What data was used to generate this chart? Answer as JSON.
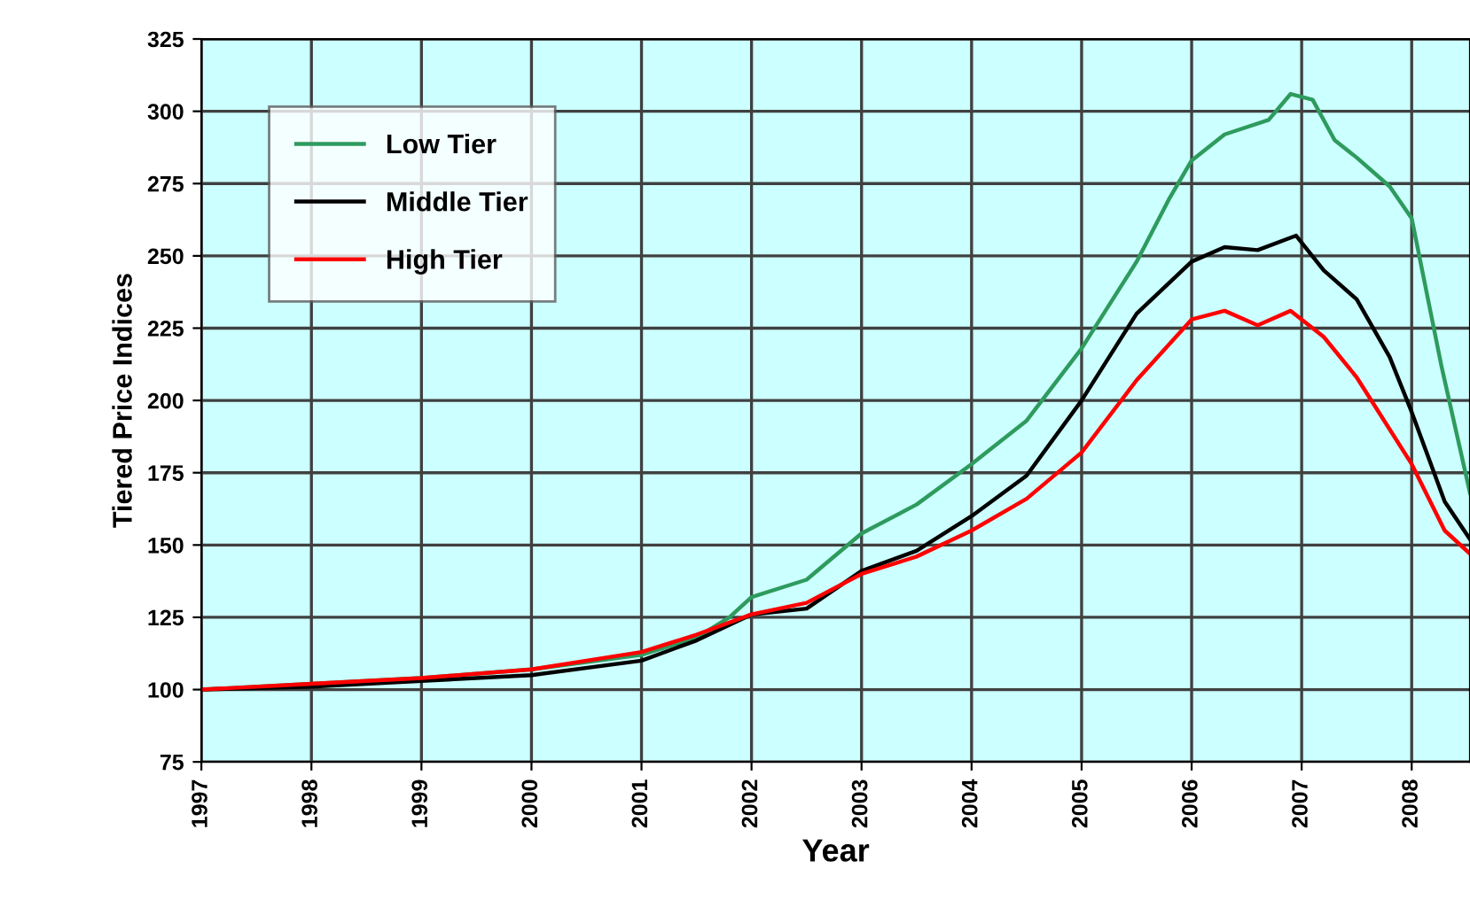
{
  "chart_data": {
    "type": "line",
    "xlabel": "Year",
    "ylabel": "Tiered Price Indices",
    "xlim": [
      1997,
      2008.53
    ],
    "xticks": [
      1997,
      1998,
      1999,
      2000,
      2001,
      2002,
      2003,
      2004,
      2005,
      2006,
      2007,
      2008
    ],
    "ylim": [
      75,
      325
    ],
    "yticks": [
      75,
      100,
      125,
      150,
      175,
      200,
      225,
      250,
      275,
      300,
      325
    ],
    "grid": true,
    "legend": "top left",
    "marker": "none",
    "line_style": "solid",
    "series": [
      {
        "name": "Low Tier",
        "color": "#2e9b5e",
        "x": [
          1997,
          1998,
          1999,
          2000,
          2001,
          2001.5,
          2001.8,
          2002,
          2002.5,
          2003,
          2003.5,
          2004,
          2004.5,
          2005,
          2005.5,
          2005.8,
          2006,
          2006.3,
          2006.7,
          2006.9,
          2007.1,
          2007.3,
          2007.5,
          2007.8,
          2008,
          2008.27,
          2008.53
        ],
        "values": [
          100,
          102,
          104,
          107,
          112,
          118,
          125,
          132,
          138,
          154,
          164,
          178,
          193,
          218,
          248,
          270,
          283,
          292,
          297,
          306,
          304,
          290,
          284,
          274,
          263,
          212,
          168
        ]
      },
      {
        "name": "Middle Tier",
        "color": "#000000",
        "x": [
          1997,
          1998,
          1999,
          2000,
          2001,
          2001.5,
          2002,
          2002.5,
          2003,
          2003.5,
          2004,
          2004.5,
          2005,
          2005.5,
          2006,
          2006.3,
          2006.6,
          2006.95,
          2007.2,
          2007.5,
          2007.8,
          2008,
          2008.3,
          2008.53
        ],
        "values": [
          100,
          101,
          103,
          105,
          110,
          117,
          126,
          128,
          141,
          148,
          160,
          174,
          200,
          230,
          248,
          253,
          252,
          257,
          245,
          235,
          215,
          196,
          165,
          152
        ]
      },
      {
        "name": "High Tier",
        "color": "#ff0000",
        "x": [
          1997,
          1998,
          1999,
          2000,
          2001,
          2001.5,
          2002,
          2002.5,
          2003,
          2003.5,
          2004,
          2004.5,
          2005,
          2005.5,
          2006,
          2006.3,
          2006.6,
          2006.9,
          2007.2,
          2007.5,
          2007.8,
          2008,
          2008.3,
          2008.53
        ],
        "values": [
          100,
          102,
          104,
          107,
          113,
          119,
          126,
          130,
          140,
          146,
          155,
          166,
          182,
          207,
          228,
          231,
          226,
          231,
          222,
          208,
          190,
          178,
          155,
          147
        ]
      }
    ]
  }
}
